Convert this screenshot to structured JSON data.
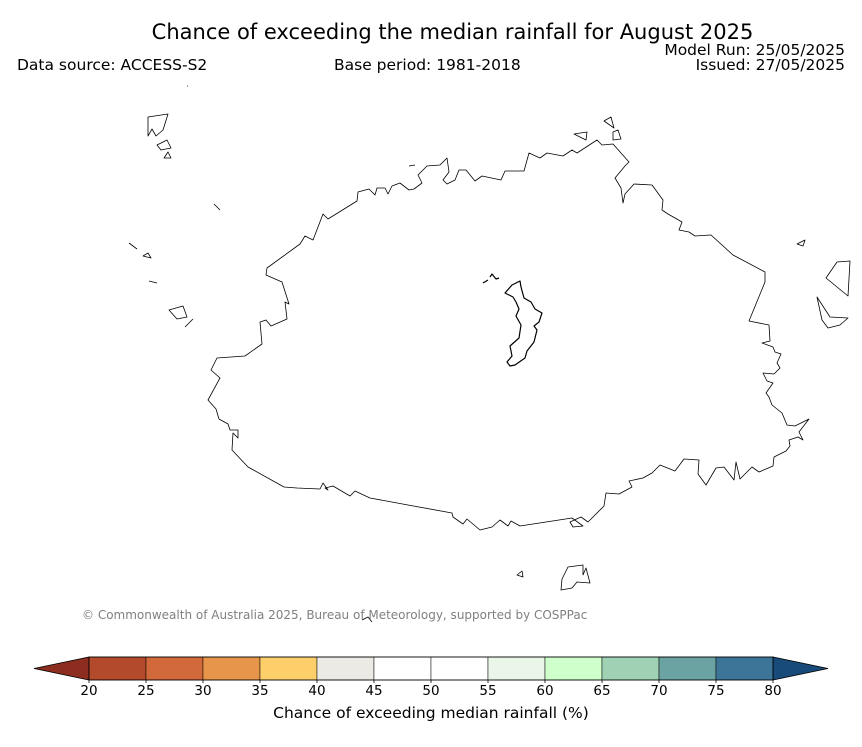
{
  "header": {
    "title": "Chance of exceeding the median rainfall for August 2025",
    "data_source": "Data source: ACCESS-S2",
    "base_period": "Base period: 1981-2018",
    "model_run": "Model Run: 25/05/2025",
    "issued": "Issued: 27/05/2025"
  },
  "credit": "© Commonwealth of Australia 2025, Bureau of Meteorology, supported by COSPPac",
  "colorbar": {
    "title": "Chance of exceeding median rainfall (%)",
    "ticks": [
      "20",
      "25",
      "30",
      "35",
      "40",
      "45",
      "50",
      "55",
      "60",
      "65",
      "70",
      "75",
      "80"
    ],
    "under_color": "#8c2d1f",
    "over_color": "#184a7a",
    "bins": [
      {
        "from": 20,
        "to": 25,
        "color": "#b34a2b"
      },
      {
        "from": 25,
        "to": 30,
        "color": "#d2693a"
      },
      {
        "from": 30,
        "to": 35,
        "color": "#e6954a"
      },
      {
        "from": 35,
        "to": 40,
        "color": "#fdcf6b"
      },
      {
        "from": 40,
        "to": 45,
        "color": "#ebeae5"
      },
      {
        "from": 45,
        "to": 50,
        "color": "#ffffff"
      },
      {
        "from": 50,
        "to": 55,
        "color": "#ffffff"
      },
      {
        "from": 55,
        "to": 60,
        "color": "#eaf7e8"
      },
      {
        "from": 60,
        "to": 65,
        "color": "#cfffcb"
      },
      {
        "from": 65,
        "to": 70,
        "color": "#9fd2b5"
      },
      {
        "from": 70,
        "to": 75,
        "color": "#6ba3a3"
      },
      {
        "from": 75,
        "to": 80,
        "color": "#3c7597"
      }
    ]
  },
  "map": {
    "region": "Fiji (Viti Levu)",
    "fill_color": "#ffffff",
    "outline_color": "#000000"
  }
}
